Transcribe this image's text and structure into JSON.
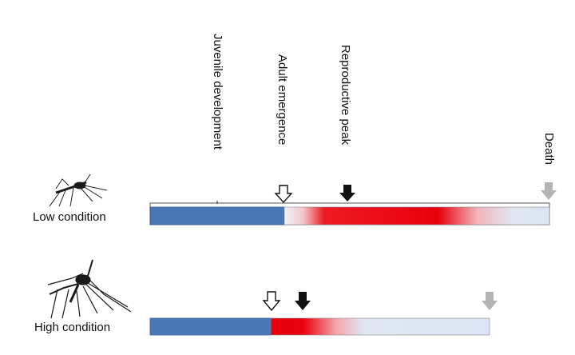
{
  "stage_labels": {
    "juvenile": "Juvenile development",
    "adult": "Adult emergence",
    "reproductive": "Reproductive peak",
    "death": "Death"
  },
  "rows": {
    "low": {
      "label": "Low condition"
    },
    "high": {
      "label": "High condition"
    }
  },
  "colors": {
    "juvenile": "#4a77b8",
    "reproductive": "#e8000c",
    "senescence": "#dbe4f2",
    "arrow_dark": "#111111",
    "arrow_death": "#b4b4b4"
  }
}
